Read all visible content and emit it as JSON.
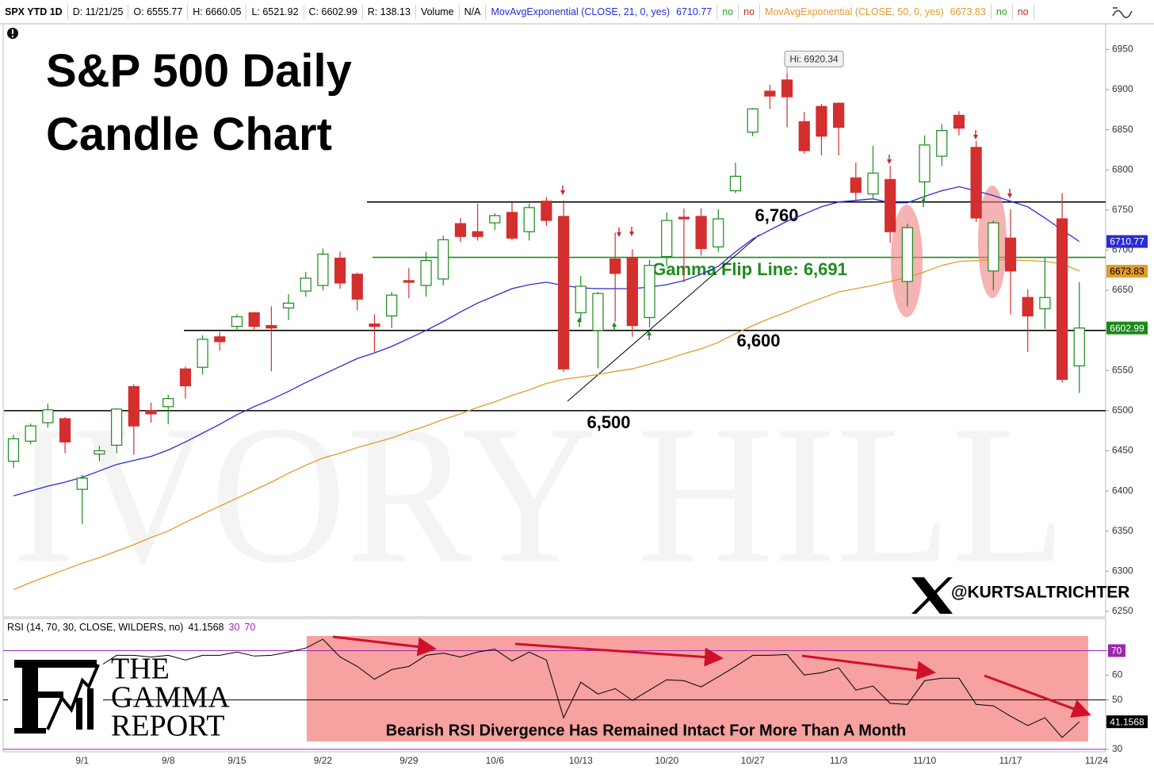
{
  "chart_data": [
    {
      "type": "candlestick",
      "title": "S&P 500 Daily Candle Chart",
      "header": [
        "SPX YTD 1D",
        "D: 11/21/25",
        "O: 6555.77",
        "H: 6660.05",
        "L: 6521.92",
        "C: 6602.99",
        "R: 138.13",
        "Volume",
        "N/A"
      ],
      "categories": [
        null,
        null,
        null,
        null,
        "9/1",
        null,
        null,
        null,
        null,
        "9/8",
        null,
        null,
        null,
        "9/15",
        null,
        null,
        null,
        null,
        "9/22",
        null,
        null,
        null,
        null,
        "9/29",
        null,
        null,
        null,
        null,
        "10/6",
        null,
        null,
        null,
        null,
        "10/13",
        null,
        null,
        null,
        null,
        "10/20",
        null,
        null,
        null,
        null,
        "10/27",
        null,
        null,
        null,
        null,
        "11/3",
        null,
        null,
        null,
        null,
        "11/10",
        null,
        null,
        null,
        null,
        "11/17",
        null,
        null,
        null,
        null,
        "11/24"
      ],
      "open": [
        6437,
        6462,
        6485,
        6490,
        6402,
        6446,
        6457,
        6530,
        6500,
        6505,
        6552,
        6554,
        6592,
        6605,
        6622,
        6606,
        6628,
        6649,
        6656,
        6690,
        6670,
        6608,
        6618,
        6662,
        6656,
        6664,
        6733,
        6723,
        6734,
        6747,
        6723,
        6761,
        6742,
        6622,
        6600,
        6689,
        6690,
        6616,
        6692,
        6741,
        6742,
        6704,
        6774,
        6847,
        6898,
        6912,
        6860,
        6879,
        6883,
        6790,
        6770,
        6788,
        6661,
        6785,
        6817,
        6868,
        6828,
        6674,
        6715,
        6641,
        6627,
        6739,
        6555.77,
        null
      ],
      "high": [
        6470,
        6484,
        6509,
        6492,
        6420,
        6456,
        6503,
        6533,
        6510,
        6520,
        6555,
        6594,
        6598,
        6620,
        6623,
        6630,
        6645,
        6673,
        6702,
        6698,
        6672,
        6620,
        6648,
        6678,
        6698,
        6718,
        6740,
        6758,
        6746,
        6759,
        6758,
        6766,
        6762,
        6668,
        6648,
        6722,
        6701,
        6688,
        6747,
        6752,
        6752,
        6751,
        6809,
        6877,
        6906,
        6920.34,
        6872,
        6882,
        6884,
        6809,
        6830,
        6805,
        6733,
        6843,
        6857,
        6873,
        6836,
        6737,
        6751,
        6651,
        6690,
        6771,
        6660.05,
        null
      ],
      "low": [
        6429,
        6458,
        6479,
        6447,
        6359,
        6437,
        6447,
        6445,
        6485,
        6483,
        6515,
        6545,
        6575,
        6599,
        6600,
        6549,
        6613,
        6642,
        6650,
        6652,
        6625,
        6573,
        6603,
        6640,
        6642,
        6656,
        6710,
        6712,
        6725,
        6712,
        6712,
        6730,
        6548,
        6613,
        6553,
        6611,
        6592,
        6604,
        6680,
        6660,
        6693,
        6698,
        6771,
        6842,
        6876,
        6853,
        6820,
        6818,
        6818,
        6759,
        6763,
        6709,
        6630,
        6763,
        6805,
        6843,
        6735,
        6650,
        6620,
        6573,
        6602,
        6535,
        6521.92,
        null
      ],
      "close": [
        6465,
        6481,
        6501,
        6461,
        6416,
        6450,
        6502,
        6481,
        6496,
        6515,
        6531,
        6589,
        6586,
        6617,
        6605,
        6603,
        6634,
        6665,
        6695,
        6659,
        6639,
        6605,
        6644,
        6660,
        6687,
        6713,
        6717,
        6717,
        6743,
        6715,
        6753,
        6737,
        6552,
        6655,
        6646,
        6671,
        6606,
        6681,
        6737,
        6739,
        6702,
        6739,
        6792,
        6876,
        6892,
        6891,
        6824,
        6842,
        6853,
        6772,
        6796,
        6723,
        6728,
        6831,
        6849,
        6852,
        6740,
        6734,
        6674,
        6618,
        6641,
        6539,
        6602.99,
        null
      ],
      "up_color": "#1a8a1a",
      "down_color": "#d32f2f",
      "series": [
        {
          "name": "MovAvgExponential (CLOSE, 21, 0, yes)",
          "color": "#2b2bd6",
          "flags": [
            "no",
            "no"
          ],
          "values": [
            6394,
            6400,
            6406,
            6411,
            6417,
            6425,
            6433,
            6438,
            6443,
            6451,
            6461,
            6472,
            6483,
            6495,
            6505,
            6514,
            6524,
            6535,
            6545,
            6555,
            6565,
            6572,
            6580,
            6590,
            6600,
            6611,
            6623,
            6634,
            6643,
            6652,
            6657,
            6660,
            6656,
            6653,
            6652,
            6652,
            6652,
            6654,
            6657,
            6662,
            6670,
            6680,
            6698,
            6714,
            6725,
            6736,
            6745,
            6754,
            6760,
            6762,
            6764,
            6759,
            6759,
            6767,
            6774,
            6779,
            6774,
            6768,
            6761,
            6754,
            6740,
            6725,
            6710.77,
            null
          ]
        },
        {
          "name": "MovAvgExponential (CLOSE, 50, 0, yes)",
          "color": "#e39b2b",
          "flags": [
            "no",
            "no"
          ],
          "values": [
            6277,
            6286,
            6294,
            6302,
            6310,
            6317,
            6325,
            6333,
            6342,
            6350,
            6361,
            6371,
            6381,
            6391,
            6401,
            6411,
            6422,
            6432,
            6441,
            6447,
            6454,
            6460,
            6466,
            6474,
            6481,
            6489,
            6496,
            6504,
            6511,
            6519,
            6526,
            6534,
            6539,
            6542,
            6545,
            6549,
            6552,
            6558,
            6564,
            6571,
            6577,
            6585,
            6596,
            6606,
            6615,
            6623,
            6632,
            6640,
            6648,
            6652,
            6656,
            6661,
            6666,
            6673,
            6681,
            6686,
            6687,
            6688,
            6688,
            6687,
            6686,
            6683,
            6673.83,
            null
          ]
        }
      ],
      "ylim": [
        6243,
        6982
      ],
      "yticks": [
        6250,
        6300,
        6350,
        6400,
        6450,
        6500,
        6550,
        6600,
        6650,
        6700,
        6750,
        6800,
        6850,
        6900,
        6950
      ],
      "levels": [
        {
          "value": 6760,
          "label": "6,760",
          "color": "#000000"
        },
        {
          "value": 6691,
          "label": "Gamma Flip Line: 6,691",
          "color": "#1e8c1e"
        },
        {
          "value": 6600,
          "label": "6,600",
          "color": "#000000"
        },
        {
          "value": 6500,
          "label": "6,500",
          "color": "#000000"
        }
      ],
      "high_label": "Hi: 6920.34"
    },
    {
      "type": "line",
      "title": "RSI (14, 70, 30, CLOSE, WILDERS, no)",
      "values": [
        62.6,
        65.2,
        69.4,
        67.1,
        62,
        63.6,
        68.1,
        68.1,
        67.4,
        68.1,
        66.2,
        68.1,
        68.1,
        69.4,
        67.8,
        68.1,
        69.4,
        71,
        74.6,
        67.4,
        63.6,
        58.4,
        62.3,
        63.6,
        68.1,
        69,
        67.4,
        69.4,
        70.6,
        65.8,
        69.4,
        66.2,
        42.8,
        57.2,
        52.4,
        54.6,
        49.8,
        54,
        58.2,
        57.8,
        55.3,
        59.4,
        63.6,
        68.1,
        68.1,
        68.4,
        60.1,
        61,
        63,
        54,
        55.6,
        48.6,
        48.2,
        57.8,
        58.8,
        58.8,
        48.2,
        47.6,
        43.4,
        39.6,
        42.8,
        34.8,
        41.1568,
        null
      ],
      "color": "#000000",
      "overbought": 70,
      "oversold": 30,
      "midline": 50,
      "band_color": "#9c27b0",
      "ylim": [
        29,
        83
      ],
      "yticks": [
        30,
        40,
        50,
        60,
        70
      ],
      "annotation": "Bearish RSI Divergence Has Remained Intact For More Than A Month"
    }
  ],
  "branding": {
    "watermark": "IVORY HILL",
    "handle": "@KURTSALTRICHTER",
    "logo": [
      "THE",
      "GAMMA",
      "REPORT"
    ]
  }
}
